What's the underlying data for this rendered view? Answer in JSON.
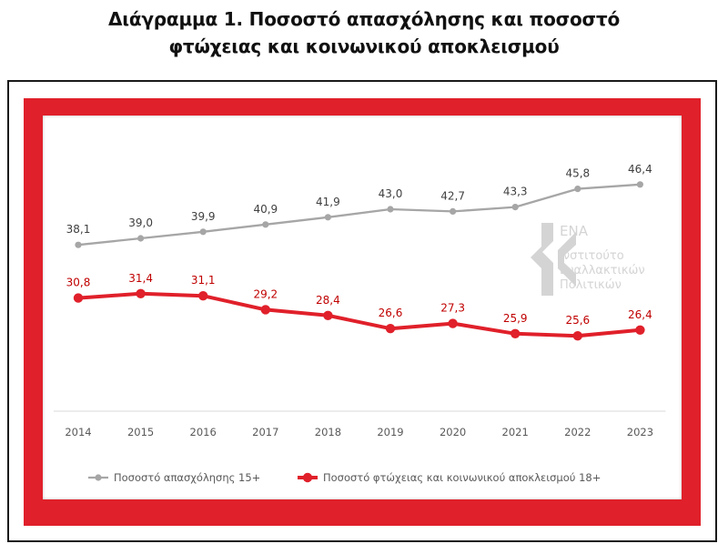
{
  "title_lines": [
    "Διάγραμμα 1. Ποσοστό απασχόλησης και ποσοστό",
    "φτώχειας και κοινωνικού αποκλεισμού"
  ],
  "logo": {
    "mark": "ΕΝΑ",
    "lines": [
      "Ινστιτούτο",
      "Εναλλακτικών",
      "Πολιτικών"
    ]
  },
  "colors": {
    "frame_red": "#e0202a",
    "series_employment": "#a6a6a6",
    "series_poverty": "#e0202a",
    "label_employment": "#404040",
    "label_poverty": "#c00000",
    "logo": "#d4d4d4"
  },
  "chart_data": {
    "type": "line",
    "categories": [
      "2014",
      "2015",
      "2016",
      "2017",
      "2018",
      "2019",
      "2020",
      "2021",
      "2022",
      "2023"
    ],
    "series": [
      {
        "name": "Ποσοστό απασχόλησης 15+",
        "values": [
          38.1,
          39.0,
          39.9,
          40.9,
          41.9,
          43.0,
          42.7,
          43.3,
          45.8,
          46.4
        ],
        "labels": [
          "38,1",
          "39,0",
          "39,9",
          "40,9",
          "41,9",
          "43,0",
          "42,7",
          "43,3",
          "45,8",
          "46,4"
        ]
      },
      {
        "name": "Ποσοστό φτώχειας και κοινωνικού αποκλεισμού 18+",
        "values": [
          30.8,
          31.4,
          31.1,
          29.2,
          28.4,
          26.6,
          27.3,
          25.9,
          25.6,
          26.4
        ],
        "labels": [
          "30,8",
          "31,4",
          "31,1",
          "29,2",
          "28,4",
          "26,6",
          "27,3",
          "25,9",
          "25,6",
          "26,4"
        ]
      }
    ],
    "ylim": [
      20,
      50
    ],
    "grid": false,
    "legend": "bottom-left",
    "y_axis_visible": false
  }
}
